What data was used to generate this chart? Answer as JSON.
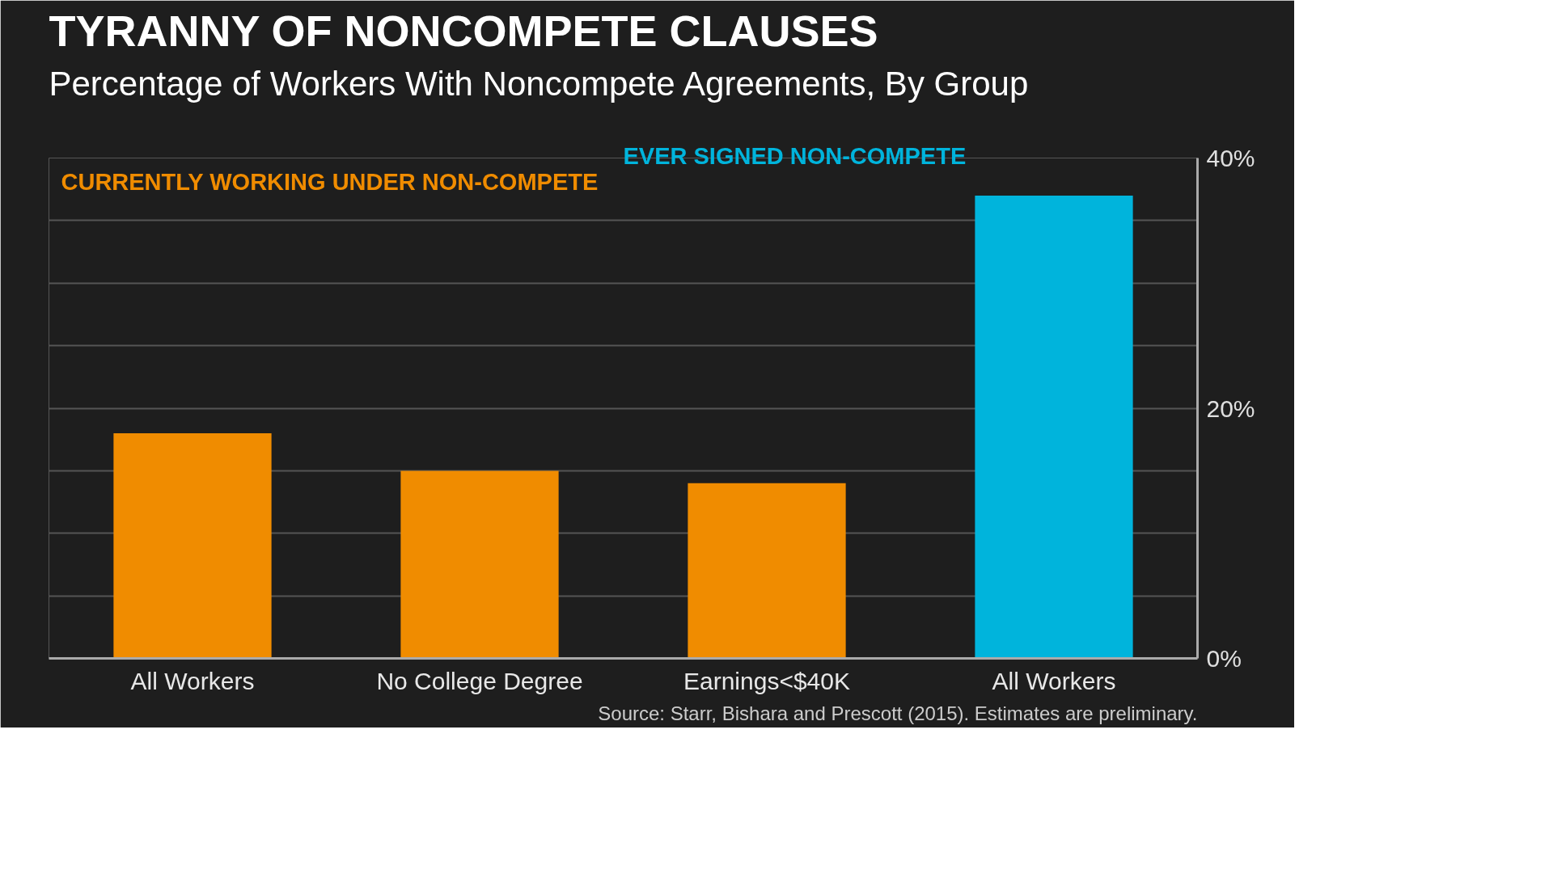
{
  "chart_data": {
    "type": "bar",
    "title": "TYRANNY OF NONCOMPETE CLAUSES",
    "subtitle": "Percentage of Workers With Noncompete Agreements, By Group",
    "categories": [
      "All Workers",
      "No College Degree",
      "Earnings<$40K",
      "All Workers"
    ],
    "series": [
      {
        "name": "CURRENTLY WORKING UNDER NON-COMPETE",
        "color": "#f08c00",
        "values": [
          18,
          15,
          14,
          null
        ]
      },
      {
        "name": "EVER SIGNED NON-COMPETE",
        "color": "#00b4dc",
        "values": [
          null,
          null,
          null,
          37
        ]
      }
    ],
    "ylim": [
      0,
      40
    ],
    "yticks": [
      {
        "value": 0,
        "label": "0%"
      },
      {
        "value": 5,
        "label": null
      },
      {
        "value": 10,
        "label": null
      },
      {
        "value": 15,
        "label": null
      },
      {
        "value": 20,
        "label": "20%"
      },
      {
        "value": 25,
        "label": null
      },
      {
        "value": 30,
        "label": null
      },
      {
        "value": 35,
        "label": null
      },
      {
        "value": 40,
        "label": "40%"
      }
    ],
    "grid": "y",
    "legend": "top",
    "annotations": [
      "Source: Starr, Bishara and Prescott (2015). Estimates are preliminary."
    ]
  }
}
